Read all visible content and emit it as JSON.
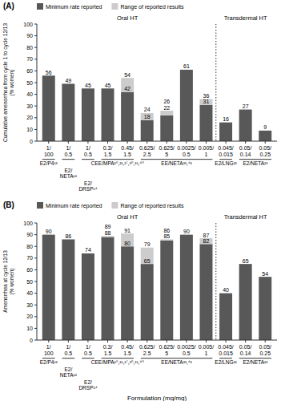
{
  "chart_data": [
    {
      "type": "bar",
      "title": "(A)",
      "stacked": true,
      "data_labels": true,
      "legend": "top",
      "grid": false,
      "y_label": "Cumulative amenorrhea from cycle 1 to cycle 12/13\n(% women)",
      "categories": [
        "1/\n100",
        "1/\n0.5",
        "1/\n0.5",
        "0.3/\n1.5",
        "0.45/\n1.5",
        "0.625/\n2.5",
        "0.625/\n5",
        "0.0025/\n0.5",
        "0.005/\n1",
        "0.045/\n0.015",
        "0.05/\n0.14",
        "0.05/\n0.25"
      ],
      "series": [
        {
          "name": "Minimum rate reported",
          "color": "#585858",
          "values": [
            56,
            49,
            45,
            45,
            42,
            18,
            22,
            61,
            31,
            16,
            27,
            9
          ]
        },
        {
          "name": "Range of reported results",
          "color": "#cccccc",
          "values": [
            0,
            0,
            0,
            0,
            12,
            6,
            4,
            0,
            5,
            0,
            0,
            0
          ]
        }
      ],
      "totals": [
        56,
        49,
        45,
        45,
        54,
        24,
        26,
        61,
        36,
        16,
        27,
        9
      ],
      "ylim": [
        0,
        100
      ],
      "yticks": [
        0,
        10,
        20,
        30,
        40,
        50,
        60,
        70,
        80,
        90,
        100
      ],
      "sections": [
        {
          "label": "Oral HT",
          "first": 0,
          "last": 8
        },
        {
          "label": "Transdermal HT",
          "first": 9,
          "last": 11
        }
      ],
      "groups": [
        {
          "label": "E2/P4¹³",
          "first": 0,
          "last": 0
        },
        {
          "label": "E2/\nNETA¹²",
          "first": 1,
          "last": 1
        },
        {
          "label": "E2/\nDRSP¹⁴",
          "first": 2,
          "last": 2
        },
        {
          "label": "CEE/MPA²⁰,²¹,²⁷,³⁰,³¹,⁴⁰",
          "first": 3,
          "last": 4
        },
        {
          "label": "EE/NETA³³,⁴³",
          "first": 5,
          "last": 8
        },
        {
          "label": "E2/LNG²²",
          "first": 9,
          "last": 9
        },
        {
          "label": "E2/NETA²³",
          "first": 10,
          "last": 11
        }
      ]
    },
    {
      "type": "bar",
      "title": "(B)",
      "stacked": true,
      "data_labels": true,
      "legend": "top",
      "grid": false,
      "y_label": "Amenorrhea at cycle 12/13\n(% women)",
      "x_label": "Formulation (mg/mg)",
      "categories": [
        "1/\n100",
        "1/\n0.5",
        "1/\n0.5",
        "0.3/\n1.5",
        "0.45/\n1.5",
        "0.625/\n2.5",
        "0.625/\n5",
        "0.0025/\n0.5",
        "0.005/\n1",
        "0.045/\n0.015",
        "0.05/\n0.14",
        "0.05/\n0.25"
      ],
      "series": [
        {
          "name": "Minimum rate reported",
          "color": "#585858",
          "values": [
            90,
            86,
            74,
            88,
            80,
            65,
            85,
            90,
            82,
            40,
            65,
            54
          ]
        },
        {
          "name": "Range of reported results",
          "color": "#cccccc",
          "values": [
            0,
            0,
            0,
            1,
            11,
            14,
            1,
            0,
            5,
            0,
            0,
            0
          ]
        }
      ],
      "totals": [
        90,
        86,
        74,
        89,
        91,
        79,
        86,
        90,
        87,
        40,
        65,
        54
      ],
      "ylim": [
        0,
        100
      ],
      "yticks": [
        0,
        10,
        20,
        30,
        40,
        50,
        60,
        70,
        80,
        90,
        100
      ],
      "sections": [
        {
          "label": "Oral HT",
          "first": 0,
          "last": 8
        },
        {
          "label": "Transdermal HT",
          "first": 9,
          "last": 11
        }
      ],
      "groups": [
        {
          "label": "E2/P4¹³",
          "first": 0,
          "last": 0
        },
        {
          "label": "E2/\nNETA¹²",
          "first": 1,
          "last": 1
        },
        {
          "label": "E2/\nDRSP¹⁴",
          "first": 2,
          "last": 2
        },
        {
          "label": "CEE/MPA²⁰,²¹,²⁷,³⁰,³¹,⁴⁰",
          "first": 3,
          "last": 4
        },
        {
          "label": "EE/NETA³³,⁴³",
          "first": 5,
          "last": 8
        },
        {
          "label": "E2/LNG²²",
          "first": 9,
          "last": 9
        },
        {
          "label": "E2/NETA²³",
          "first": 10,
          "last": 11
        }
      ]
    }
  ]
}
